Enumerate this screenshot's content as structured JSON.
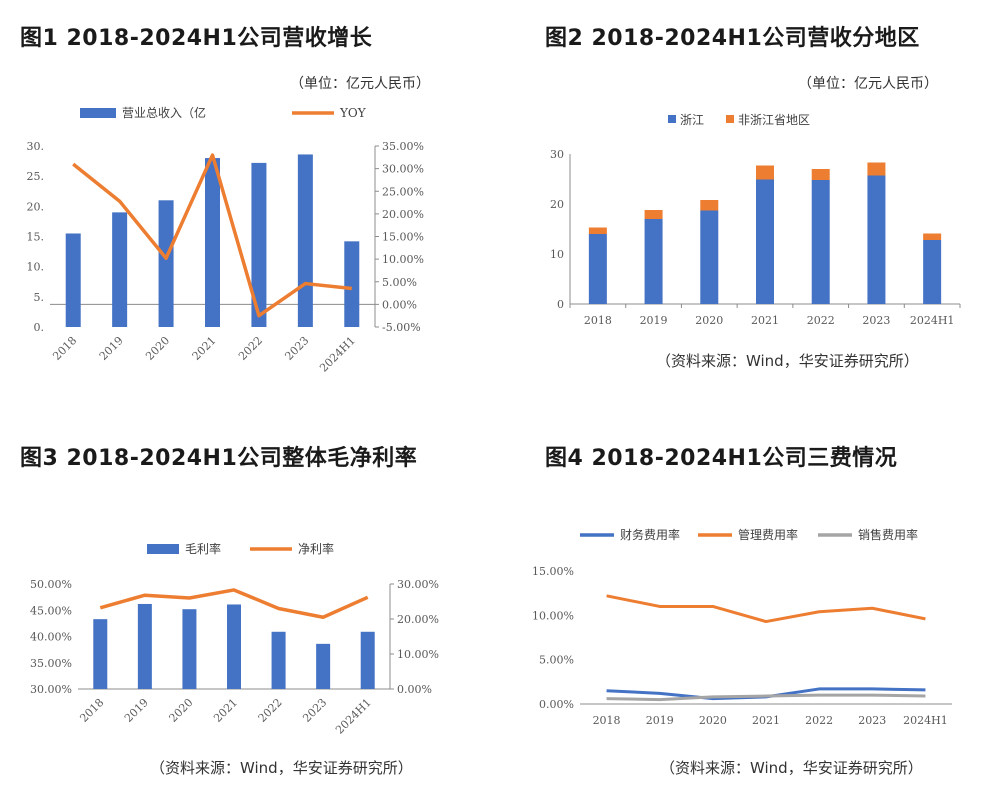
{
  "titles": {
    "fig1": "图1  2018-2024H1公司营收增长",
    "fig2": "图2  2018-2024H1公司营收分地区",
    "fig3": "图3  2018-2024H1公司整体毛净利率",
    "fig4": "图4  2018-2024H1公司三费情况"
  },
  "units": {
    "fig1": "（单位：亿元人民币）",
    "fig2": "（单位：亿元人民币）"
  },
  "sources": {
    "fig2": "（资料来源：Wind，华安证券研究所）",
    "fig3": "（资料来源：Wind，华安证券研究所）",
    "fig4": "（资料来源：Wind，华安证券研究所）"
  },
  "colors": {
    "blue": "#4472C4",
    "orange": "#ED7D31",
    "gray": "#A5A5A5",
    "axis": "#8C8C8C"
  },
  "chart_data": [
    {
      "id": "fig1",
      "type": "bar",
      "categories": [
        "2018",
        "2019",
        "2020",
        "2021",
        "2022",
        "2023",
        "2024H1"
      ],
      "series": [
        {
          "name": "营业总收入（亿",
          "type": "bar",
          "axis": "left",
          "values": [
            15.5,
            19.0,
            21.0,
            28.0,
            27.2,
            28.6,
            14.2
          ]
        },
        {
          "name": "YOY",
          "type": "line",
          "axis": "right",
          "values": [
            31.0,
            22.8,
            10.2,
            33.0,
            -2.5,
            4.6,
            3.5
          ]
        }
      ],
      "yticks_left": [
        "0.",
        "5.",
        "10.",
        "15.",
        "20.",
        "25.",
        "30."
      ],
      "ylim_left": [
        0,
        30
      ],
      "yticks_right": [
        "-5.00%",
        "0.00%",
        "5.00%",
        "10.00%",
        "15.00%",
        "20.00%",
        "25.00%",
        "30.00%",
        "35.00%"
      ],
      "ylim_right": [
        -5,
        35
      ],
      "legend": "top"
    },
    {
      "id": "fig2",
      "type": "bar",
      "stacked": true,
      "categories": [
        "2018",
        "2019",
        "2020",
        "2021",
        "2022",
        "2023",
        "2024H1"
      ],
      "series": [
        {
          "name": "浙江",
          "values": [
            14.0,
            17.0,
            18.7,
            24.9,
            24.8,
            25.7,
            12.8
          ]
        },
        {
          "name": "非浙江省地区",
          "values": [
            1.3,
            1.8,
            2.1,
            2.8,
            2.2,
            2.6,
            1.3
          ]
        }
      ],
      "yticks_left": [
        "0",
        "10",
        "20",
        "30"
      ],
      "ylim_left": [
        0,
        30
      ],
      "legend": "top"
    },
    {
      "id": "fig3",
      "type": "bar",
      "categories": [
        "2018",
        "2019",
        "2020",
        "2021",
        "2022",
        "2023",
        "2024H1"
      ],
      "series": [
        {
          "name": "毛利率",
          "type": "bar",
          "axis": "left",
          "values": [
            43.3,
            46.2,
            45.2,
            46.1,
            40.9,
            38.6,
            40.9
          ]
        },
        {
          "name": "净利率",
          "type": "line",
          "axis": "right",
          "values": [
            23.2,
            26.8,
            26.0,
            28.3,
            23.0,
            20.5,
            26.2
          ]
        }
      ],
      "yticks_left": [
        "30.00%",
        "35.00%",
        "40.00%",
        "45.00%",
        "50.00%"
      ],
      "ylim_left": [
        30,
        50
      ],
      "yticks_right": [
        "0.00%",
        "10.00%",
        "20.00%",
        "30.00%"
      ],
      "ylim_right": [
        0,
        30
      ],
      "legend": "top"
    },
    {
      "id": "fig4",
      "type": "line",
      "categories": [
        "2018",
        "2019",
        "2020",
        "2021",
        "2022",
        "2023",
        "2024H1"
      ],
      "series": [
        {
          "name": "财务费用率",
          "values": [
            1.5,
            1.2,
            0.6,
            0.8,
            1.7,
            1.7,
            1.6
          ]
        },
        {
          "name": "管理费用率",
          "values": [
            12.2,
            11.0,
            11.0,
            9.3,
            10.4,
            10.8,
            9.6
          ]
        },
        {
          "name": "销售费用率",
          "values": [
            0.6,
            0.5,
            0.8,
            0.9,
            1.0,
            1.0,
            0.9
          ]
        }
      ],
      "yticks_left": [
        "0.00%",
        "5.00%",
        "10.00%",
        "15.00%"
      ],
      "ylim_left": [
        0,
        15
      ],
      "legend": "top"
    }
  ]
}
